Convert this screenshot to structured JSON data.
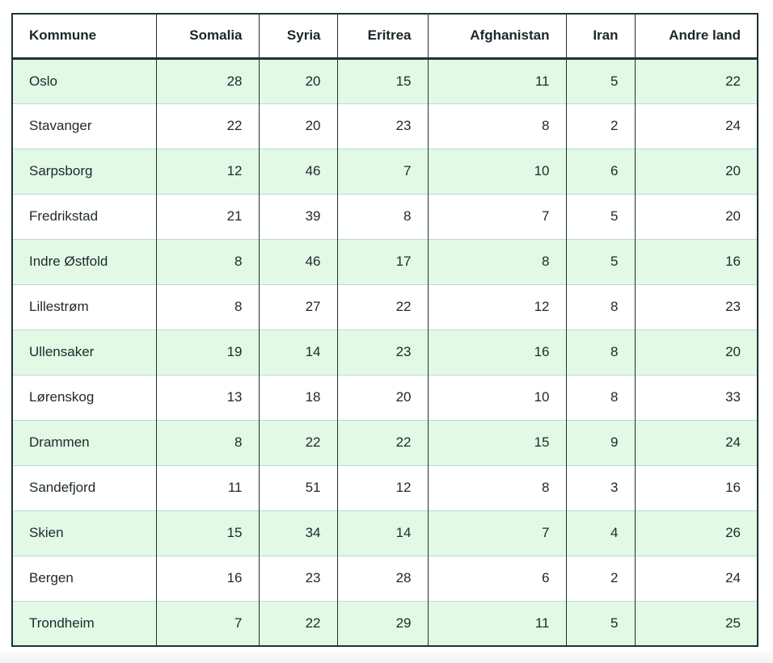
{
  "colors": {
    "row_alt_background": "#e2f9e5",
    "table_border": "#1e3136",
    "row_separator": "#bcd9d3",
    "text": "#212a2e"
  },
  "table": {
    "columns": [
      "Kommune",
      "Somalia",
      "Syria",
      "Eritrea",
      "Afghanistan",
      "Iran",
      "Andre land"
    ],
    "rows": [
      {
        "cells": [
          "Oslo",
          "28",
          "20",
          "15",
          "11",
          "5",
          "22"
        ]
      },
      {
        "cells": [
          "Stavanger",
          "22",
          "20",
          "23",
          "8",
          "2",
          "24"
        ]
      },
      {
        "cells": [
          "Sarpsborg",
          "12",
          "46",
          "7",
          "10",
          "6",
          "20"
        ]
      },
      {
        "cells": [
          "Fredrikstad",
          "21",
          "39",
          "8",
          "7",
          "5",
          "20"
        ]
      },
      {
        "cells": [
          "Indre Østfold",
          "8",
          "46",
          "17",
          "8",
          "5",
          "16"
        ]
      },
      {
        "cells": [
          "Lillestrøm",
          "8",
          "27",
          "22",
          "12",
          "8",
          "23"
        ]
      },
      {
        "cells": [
          "Ullensaker",
          "19",
          "14",
          "23",
          "16",
          "8",
          "20"
        ]
      },
      {
        "cells": [
          "Lørenskog",
          "13",
          "18",
          "20",
          "10",
          "8",
          "33"
        ]
      },
      {
        "cells": [
          "Drammen",
          "8",
          "22",
          "22",
          "15",
          "9",
          "24"
        ]
      },
      {
        "cells": [
          "Sandefjord",
          "11",
          "51",
          "12",
          "8",
          "3",
          "16"
        ]
      },
      {
        "cells": [
          "Skien",
          "15",
          "34",
          "14",
          "7",
          "4",
          "26"
        ]
      },
      {
        "cells": [
          "Bergen",
          "16",
          "23",
          "28",
          "6",
          "2",
          "24"
        ]
      },
      {
        "cells": [
          "Trondheim",
          "7",
          "22",
          "29",
          "11",
          "5",
          "25"
        ]
      }
    ]
  },
  "chart_data": {
    "type": "table",
    "title": "",
    "columns": [
      "Kommune",
      "Somalia",
      "Syria",
      "Eritrea",
      "Afghanistan",
      "Iran",
      "Andre land"
    ],
    "rows": [
      [
        "Oslo",
        28,
        20,
        15,
        11,
        5,
        22
      ],
      [
        "Stavanger",
        22,
        20,
        23,
        8,
        2,
        24
      ],
      [
        "Sarpsborg",
        12,
        46,
        7,
        10,
        6,
        20
      ],
      [
        "Fredrikstad",
        21,
        39,
        8,
        7,
        5,
        20
      ],
      [
        "Indre Østfold",
        8,
        46,
        17,
        8,
        5,
        16
      ],
      [
        "Lillestrøm",
        8,
        27,
        22,
        12,
        8,
        23
      ],
      [
        "Ullensaker",
        19,
        14,
        23,
        16,
        8,
        20
      ],
      [
        "Lørenskog",
        13,
        18,
        20,
        10,
        8,
        33
      ],
      [
        "Drammen",
        8,
        22,
        22,
        15,
        9,
        24
      ],
      [
        "Sandefjord",
        11,
        51,
        12,
        8,
        3,
        16
      ],
      [
        "Skien",
        15,
        34,
        14,
        7,
        4,
        26
      ],
      [
        "Bergen",
        16,
        23,
        28,
        6,
        2,
        24
      ],
      [
        "Trondheim",
        7,
        22,
        29,
        11,
        5,
        25
      ]
    ],
    "layout_hints": {
      "alternating_row_tint": "green on odd data rows starting with first",
      "header_alignment": "first column left, others right",
      "value_alignment": "first column left, others right"
    }
  }
}
